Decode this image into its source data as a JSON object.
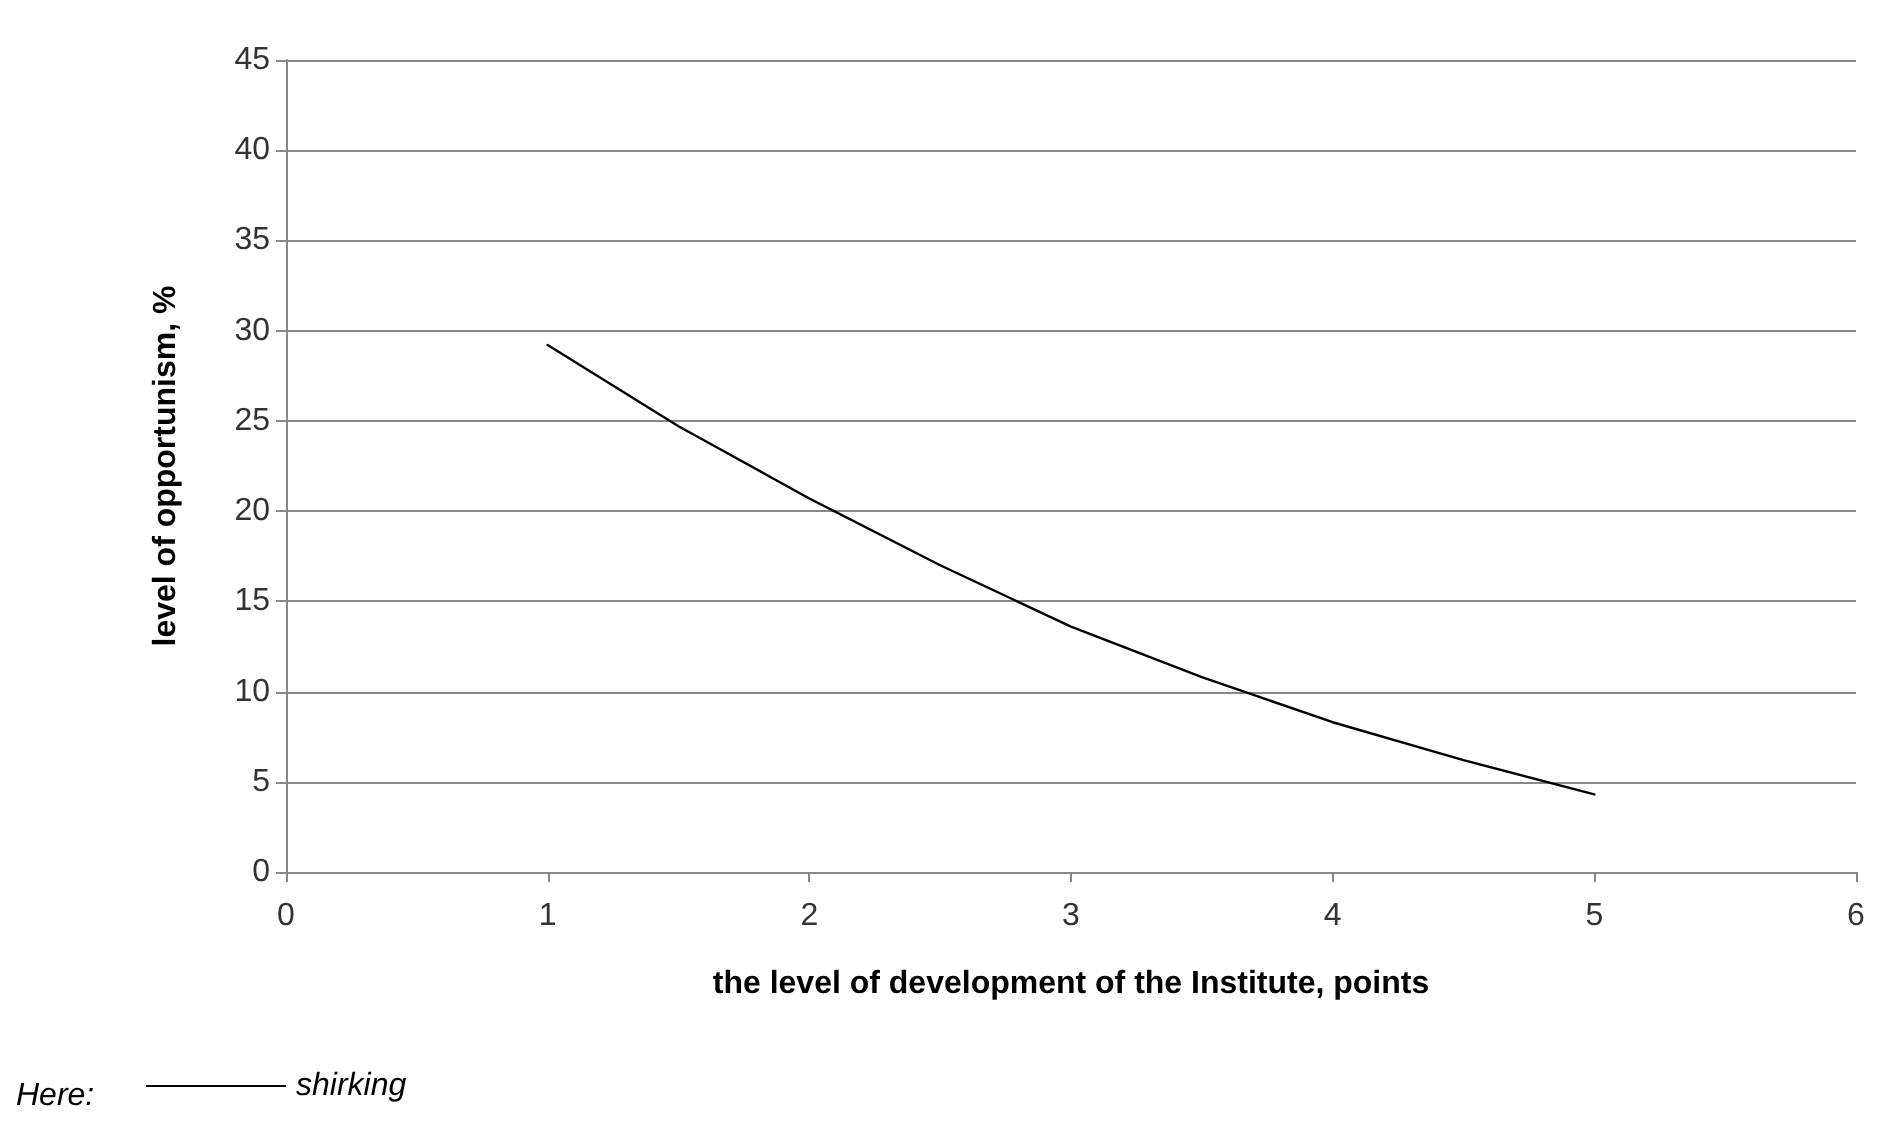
{
  "chart_data": {
    "type": "line",
    "xlabel": "the level of development of the Institute, points",
    "ylabel": "level of opportunism, %",
    "legend_title": "Here:",
    "x": [
      1,
      1.5,
      2,
      2.5,
      3,
      3.5,
      4,
      4.5,
      5
    ],
    "series": [
      {
        "name": "shirking",
        "color": "#000000",
        "values": [
          29.2,
          24.7,
          20.7,
          17,
          13.6,
          10.8,
          8.3,
          6.2,
          4.3
        ]
      }
    ],
    "xlim": [
      0,
      6
    ],
    "xticks": [
      0,
      1,
      2,
      3,
      4,
      5,
      6
    ],
    "ylim": [
      0,
      45
    ],
    "yticks": [
      0,
      5,
      10,
      15,
      20,
      25,
      30,
      35,
      40,
      45
    ],
    "grid": "y",
    "legend": "bottom left",
    "marker": "none",
    "line_style": "solid"
  }
}
